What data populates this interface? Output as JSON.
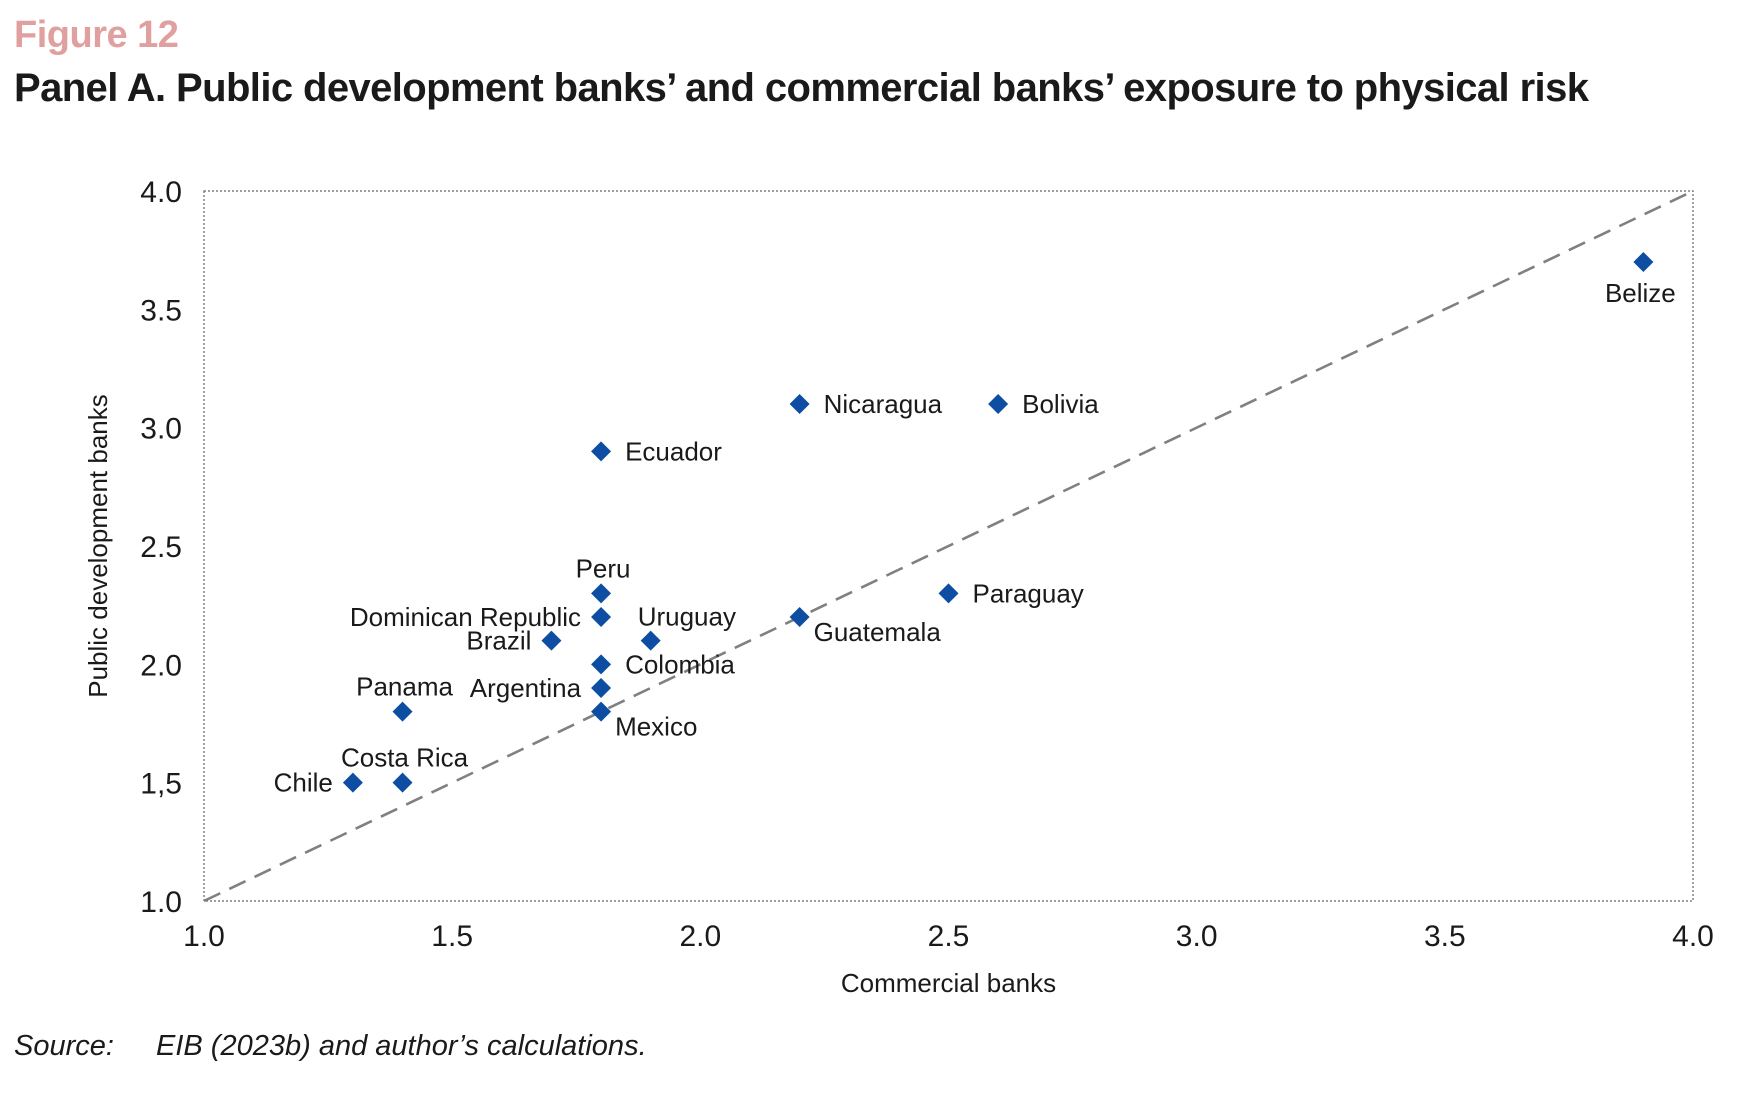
{
  "figure_label": "Figure 12",
  "title": "Panel A. Public development banks’ and commercial banks’ exposure to physical risk",
  "source": {
    "label": "Source:",
    "text": "EIB (2023b) and author’s calculations."
  },
  "colors": {
    "marker": "#0d4ea3",
    "diagonal": "#808080",
    "frame": "#666666",
    "figure_label": "#e0a0a0"
  },
  "chart_data": {
    "type": "scatter",
    "xlabel": "Commercial banks",
    "ylabel": "Public development banks",
    "xlim": [
      1.0,
      4.0
    ],
    "ylim": [
      1.0,
      4.0
    ],
    "x_ticks": [
      {
        "value": 1.0,
        "label": "1.0"
      },
      {
        "value": 1.5,
        "label": "1.5"
      },
      {
        "value": 2.0,
        "label": "2.0"
      },
      {
        "value": 2.5,
        "label": "2.5"
      },
      {
        "value": 3.0,
        "label": "3.0"
      },
      {
        "value": 3.5,
        "label": "3.5"
      },
      {
        "value": 4.0,
        "label": "4.0"
      }
    ],
    "y_ticks": [
      {
        "value": 1.0,
        "label": "1.0"
      },
      {
        "value": 1.5,
        "label": "1,5"
      },
      {
        "value": 2.0,
        "label": "2.0"
      },
      {
        "value": 2.5,
        "label": "2.5"
      },
      {
        "value": 3.0,
        "label": "3.0"
      },
      {
        "value": 3.5,
        "label": "3.5"
      },
      {
        "value": 4.0,
        "label": "4.0"
      }
    ],
    "grid": false,
    "reference_line": {
      "style": "dashed",
      "from": [
        1.0,
        1.0
      ],
      "to": [
        4.0,
        4.0
      ]
    },
    "points": [
      {
        "label": "Belize",
        "x": 3.9,
        "y": 3.7,
        "label_pos": "below"
      },
      {
        "label": "Nicaragua",
        "x": 2.2,
        "y": 3.1,
        "label_pos": "right"
      },
      {
        "label": "Bolivia",
        "x": 2.6,
        "y": 3.1,
        "label_pos": "right"
      },
      {
        "label": "Ecuador",
        "x": 1.8,
        "y": 2.9,
        "label_pos": "right"
      },
      {
        "label": "Peru",
        "x": 1.8,
        "y": 2.3,
        "label_pos": "above"
      },
      {
        "label": "Dominican Republic",
        "x": 1.8,
        "y": 2.2,
        "label_pos": "left"
      },
      {
        "label": "Uruguay",
        "x": 1.9,
        "y": 2.1,
        "label_pos": "above-right"
      },
      {
        "label": "Brazil",
        "x": 1.7,
        "y": 2.1,
        "label_pos": "left"
      },
      {
        "label": "Colombia",
        "x": 1.8,
        "y": 2.0,
        "label_pos": "right"
      },
      {
        "label": "Argentina",
        "x": 1.8,
        "y": 1.9,
        "label_pos": "left"
      },
      {
        "label": "Mexico",
        "x": 1.8,
        "y": 1.8,
        "label_pos": "below-right"
      },
      {
        "label": "Guatemala",
        "x": 2.2,
        "y": 2.2,
        "label_pos": "below-right"
      },
      {
        "label": "Paraguay",
        "x": 2.5,
        "y": 2.3,
        "label_pos": "right"
      },
      {
        "label": "Panama",
        "x": 1.4,
        "y": 1.8,
        "label_pos": "above"
      },
      {
        "label": "Costa Rica",
        "x": 1.4,
        "y": 1.5,
        "label_pos": "above"
      },
      {
        "label": "Chile",
        "x": 1.3,
        "y": 1.5,
        "label_pos": "left"
      }
    ]
  }
}
